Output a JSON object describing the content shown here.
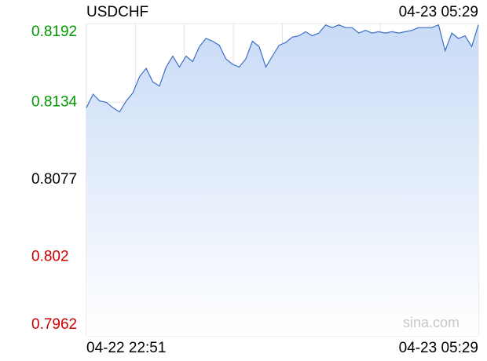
{
  "chart_data": {
    "type": "area",
    "title": "USDCHF",
    "updated": "04-23 05:29",
    "watermark": "sina.com",
    "categories": [
      "04-22 22:51",
      null,
      null,
      null,
      null,
      null,
      null,
      null,
      null,
      null,
      null,
      null,
      null,
      null,
      null,
      null,
      null,
      null,
      null,
      null,
      null,
      null,
      null,
      null,
      null,
      null,
      null,
      null,
      null,
      null,
      null,
      null,
      null,
      null,
      null,
      null,
      null,
      null,
      null,
      null,
      null,
      null,
      null,
      null,
      null,
      null,
      null,
      null,
      null,
      null,
      null,
      null,
      null,
      null,
      null,
      null,
      null,
      null,
      null,
      "04-23 05:29"
    ],
    "values": [
      0.813,
      0.814,
      0.8135,
      0.8134,
      0.813,
      0.8127,
      0.8135,
      0.8141,
      0.8153,
      0.8159,
      0.8149,
      0.8146,
      0.816,
      0.8168,
      0.816,
      0.8168,
      0.8164,
      0.8175,
      0.8181,
      0.8179,
      0.8176,
      0.8166,
      0.8162,
      0.816,
      0.8166,
      0.8179,
      0.8175,
      0.816,
      0.8168,
      0.8176,
      0.8178,
      0.8182,
      0.8183,
      0.8186,
      0.8183,
      0.8185,
      0.8191,
      0.8189,
      0.8191,
      0.8189,
      0.8189,
      0.8185,
      0.8187,
      0.8185,
      0.8186,
      0.8185,
      0.8186,
      0.8185,
      0.8186,
      0.8187,
      0.8189,
      0.8189,
      0.8189,
      0.8191,
      0.8172,
      0.8185,
      0.8181,
      0.8183,
      0.8175,
      0.8191
    ],
    "color": "#3d6fc6",
    "ylim": [
      0.7962,
      0.8192
    ],
    "yticks": [
      0.7962,
      0.802,
      0.8077,
      0.8134,
      0.8192
    ],
    "baseline": 0.8077,
    "up_color": "#009900",
    "down_color": "#cc0000",
    "flat_color": "#000000",
    "grid": true
  }
}
